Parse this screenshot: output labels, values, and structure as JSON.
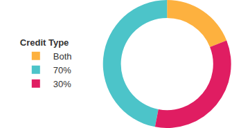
{
  "chart_data": {
    "type": "pie",
    "legend_title": "Credit Type",
    "categories": [
      "Both",
      "70%",
      "30%"
    ],
    "values": [
      19,
      47,
      34
    ],
    "colors": [
      "#fdb13f",
      "#4cc4c9",
      "#e01d62"
    ],
    "legend": "left"
  }
}
